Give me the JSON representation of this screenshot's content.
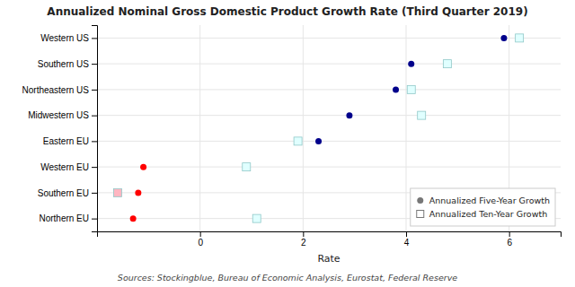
{
  "chart_data": {
    "type": "scatter",
    "title": "Annualized Nominal Gross Domestic Product Growth Rate (Third Quarter 2019)",
    "xlabel": "Rate",
    "annotations": [
      "Sources: Stockingblue, Bureau of Economic Analysis, Eurostat, Federal Reserve"
    ],
    "categories": [
      "Northern EU",
      "Southern EU",
      "Western EU",
      "Eastern EU",
      "Midwestern US",
      "Northeastern US",
      "Southern US",
      "Western US"
    ],
    "series": [
      {
        "name": "Annualized Five-Year Growth",
        "marker": "circle",
        "values": [
          -1.3,
          -1.2,
          -1.1,
          2.3,
          2.9,
          3.8,
          4.1,
          5.9
        ],
        "colors": [
          "red",
          "red",
          "red",
          "darkblue",
          "darkblue",
          "darkblue",
          "darkblue",
          "darkblue"
        ]
      },
      {
        "name": "Annualized Ten-Year Growth",
        "marker": "square",
        "values": [
          1.1,
          -1.6,
          0.9,
          1.9,
          4.3,
          4.1,
          4.8,
          6.2
        ],
        "colors": [
          "lightcyan",
          "lightpink",
          "lightcyan",
          "lightcyan",
          "lightcyan",
          "lightcyan",
          "lightcyan",
          "lightcyan"
        ]
      }
    ],
    "orientation": "horizontal",
    "xlim": [
      -2.0,
      7.0
    ],
    "xticks": [
      0,
      2,
      4,
      6
    ],
    "grid": true,
    "legend": "lower right"
  }
}
